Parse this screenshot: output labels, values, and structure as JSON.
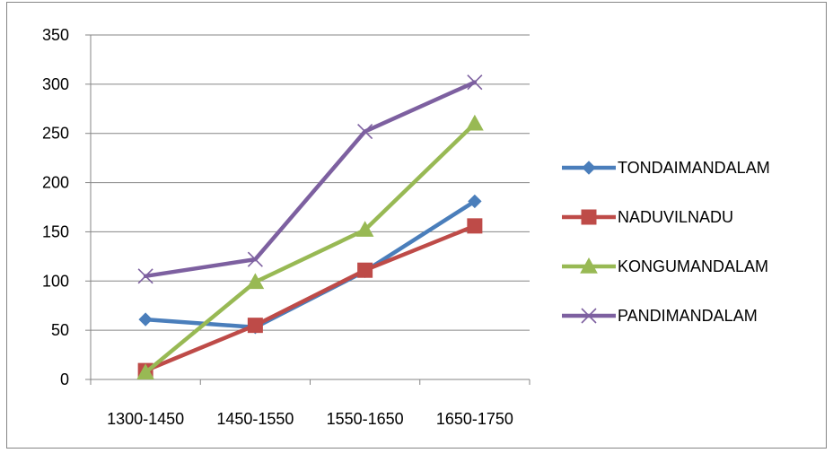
{
  "chart_data": {
    "type": "line",
    "categories": [
      "1300-1450",
      "1450-1550",
      "1550-1650",
      "1650-1750"
    ],
    "ylim": [
      0,
      350
    ],
    "yticks": [
      0,
      50,
      100,
      150,
      200,
      250,
      300,
      350
    ],
    "grid": true,
    "legend_position": "right",
    "series": [
      {
        "name": "TONDAIMANDALAM",
        "values": [
          61,
          53,
          110,
          181
        ],
        "color": "#4a7ebb",
        "marker": "diamond"
      },
      {
        "name": "NADUVILNADU",
        "values": [
          9,
          55,
          111,
          156
        ],
        "color": "#be4b48",
        "marker": "square"
      },
      {
        "name": "KONGUMANDALAM",
        "values": [
          7,
          99,
          152,
          260
        ],
        "color": "#98b954",
        "marker": "triangle"
      },
      {
        "name": "PANDIMANDALAM",
        "values": [
          105,
          122,
          252,
          302
        ],
        "color": "#7d60a0",
        "marker": "x"
      }
    ]
  }
}
